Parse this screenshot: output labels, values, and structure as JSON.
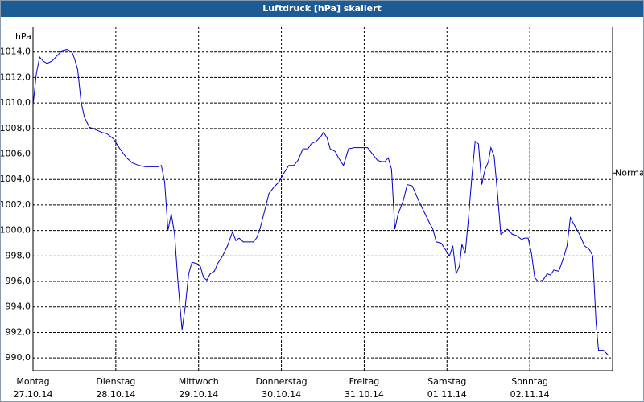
{
  "chart_data": {
    "type": "line",
    "title": "Luftdruck [hPa] skaliert",
    "y_label": "hPa",
    "xlim": [
      0,
      7
    ],
    "ylim": [
      989,
      1016
    ],
    "xticks": [
      {
        "value": 0,
        "label": "Montag"
      },
      {
        "value": 1,
        "label": "Dienstag"
      },
      {
        "value": 2,
        "label": "Mittwoch"
      },
      {
        "value": 3,
        "label": "Donnerstag"
      },
      {
        "value": 4,
        "label": "Freitag"
      },
      {
        "value": 5,
        "label": "Samstag"
      },
      {
        "value": 6,
        "label": "Sonntag"
      }
    ],
    "xtick_dates": [
      "27.10.14",
      "28.10.14",
      "29.10.14",
      "30.10.14",
      "31.10.14",
      "01.11.14",
      "02.11.14"
    ],
    "yticks": [
      {
        "value": 990,
        "label": "990,0"
      },
      {
        "value": 992,
        "label": "992,0"
      },
      {
        "value": 994,
        "label": "994,0"
      },
      {
        "value": 996,
        "label": "996,0"
      },
      {
        "value": 998,
        "label": "998,0"
      },
      {
        "value": 1000,
        "label": "1000,0"
      },
      {
        "value": 1002,
        "label": "1002,0"
      },
      {
        "value": 1004,
        "label": "1004,0"
      },
      {
        "value": 1006,
        "label": "1006,0"
      },
      {
        "value": 1008,
        "label": "1008,0"
      },
      {
        "value": 1010,
        "label": "1010,0"
      },
      {
        "value": 1012,
        "label": "1012,0"
      },
      {
        "value": 1014,
        "label": "1014,0"
      }
    ],
    "grid": true,
    "annotation": {
      "text": "Normal",
      "value": 1004.5
    },
    "series": [
      {
        "color": "#0000cc",
        "x": [
          0,
          0.04,
          0.08,
          0.12,
          0.17,
          0.23,
          0.29,
          0.35,
          0.41,
          0.47,
          0.5,
          0.54,
          0.58,
          0.62,
          0.68,
          0.76,
          0.83,
          0.89,
          0.97,
          1.05,
          1.13,
          1.2,
          1.28,
          1.36,
          1.46,
          1.51,
          1.55,
          1.59,
          1.63,
          1.67,
          1.71,
          1.75,
          1.8,
          1.84,
          1.88,
          1.92,
          1.98,
          2.02,
          2.06,
          2.1,
          2.14,
          2.19,
          2.23,
          2.29,
          2.35,
          2.41,
          2.45,
          2.49,
          2.54,
          2.6,
          2.66,
          2.7,
          2.74,
          2.8,
          2.85,
          2.91,
          2.97,
          3.03,
          3.09,
          3.15,
          3.2,
          3.26,
          3.32,
          3.36,
          3.42,
          3.48,
          3.51,
          3.55,
          3.59,
          3.65,
          3.69,
          3.75,
          3.81,
          3.88,
          3.96,
          4.04,
          4.1,
          4.16,
          4.21,
          4.25,
          4.29,
          4.33,
          4.37,
          4.41,
          4.47,
          4.52,
          4.58,
          4.62,
          4.66,
          4.72,
          4.78,
          4.83,
          4.87,
          4.93,
          4.99,
          5.03,
          5.07,
          5.11,
          5.15,
          5.18,
          5.22,
          5.26,
          5.3,
          5.34,
          5.38,
          5.42,
          5.46,
          5.5,
          5.53,
          5.57,
          5.61,
          5.65,
          5.69,
          5.73,
          5.79,
          5.84,
          5.9,
          5.94,
          5.98,
          6.02,
          6.06,
          6.1,
          6.16,
          6.21,
          6.25,
          6.29,
          6.35,
          6.41,
          6.45,
          6.49,
          6.54,
          6.6,
          6.66,
          6.72,
          6.76,
          6.8,
          6.83,
          6.89,
          6.95
        ],
        "values": [
          1009.8,
          1012.3,
          1013.6,
          1013.3,
          1013.1,
          1013.3,
          1013.7,
          1014.1,
          1014.2,
          1014.0,
          1013.5,
          1012.6,
          1010.1,
          1008.9,
          1008.1,
          1007.9,
          1007.7,
          1007.6,
          1007.2,
          1006.4,
          1005.7,
          1005.3,
          1005.1,
          1005.0,
          1005.0,
          1005.0,
          1005.1,
          1003.8,
          1000.0,
          1001.3,
          999.7,
          996.0,
          992.2,
          994.1,
          996.6,
          997.5,
          997.4,
          997.2,
          996.3,
          996.1,
          996.6,
          996.8,
          997.4,
          998.0,
          998.8,
          999.9,
          999.2,
          999.4,
          999.1,
          999.1,
          999.1,
          999.4,
          1000.1,
          1001.6,
          1002.9,
          1003.4,
          1003.8,
          1004.5,
          1005.1,
          1005.1,
          1005.5,
          1006.4,
          1006.4,
          1006.8,
          1007.0,
          1007.4,
          1007.7,
          1007.3,
          1006.4,
          1006.2,
          1005.7,
          1005.1,
          1006.4,
          1006.5,
          1006.5,
          1006.5,
          1006.0,
          1005.5,
          1005.4,
          1005.4,
          1005.7,
          1004.8,
          1000.1,
          1001.3,
          1002.3,
          1003.6,
          1003.5,
          1002.9,
          1002.3,
          1001.5,
          1000.7,
          1000.1,
          999.1,
          999.0,
          998.4,
          998.0,
          998.8,
          996.6,
          997.2,
          998.9,
          998.2,
          1001.0,
          1004.2,
          1007.0,
          1006.8,
          1003.6,
          1004.8,
          1005.4,
          1006.5,
          1005.8,
          1002.9,
          999.7,
          999.9,
          1000.1,
          999.7,
          999.6,
          999.3,
          999.4,
          999.4,
          998.2,
          996.3,
          996.0,
          996.1,
          996.6,
          996.5,
          996.9,
          996.8,
          997.9,
          998.8,
          1001.0,
          1000.4,
          999.7,
          998.8,
          998.5,
          998.0,
          992.8,
          990.6,
          990.6,
          990.2
        ]
      }
    ]
  }
}
